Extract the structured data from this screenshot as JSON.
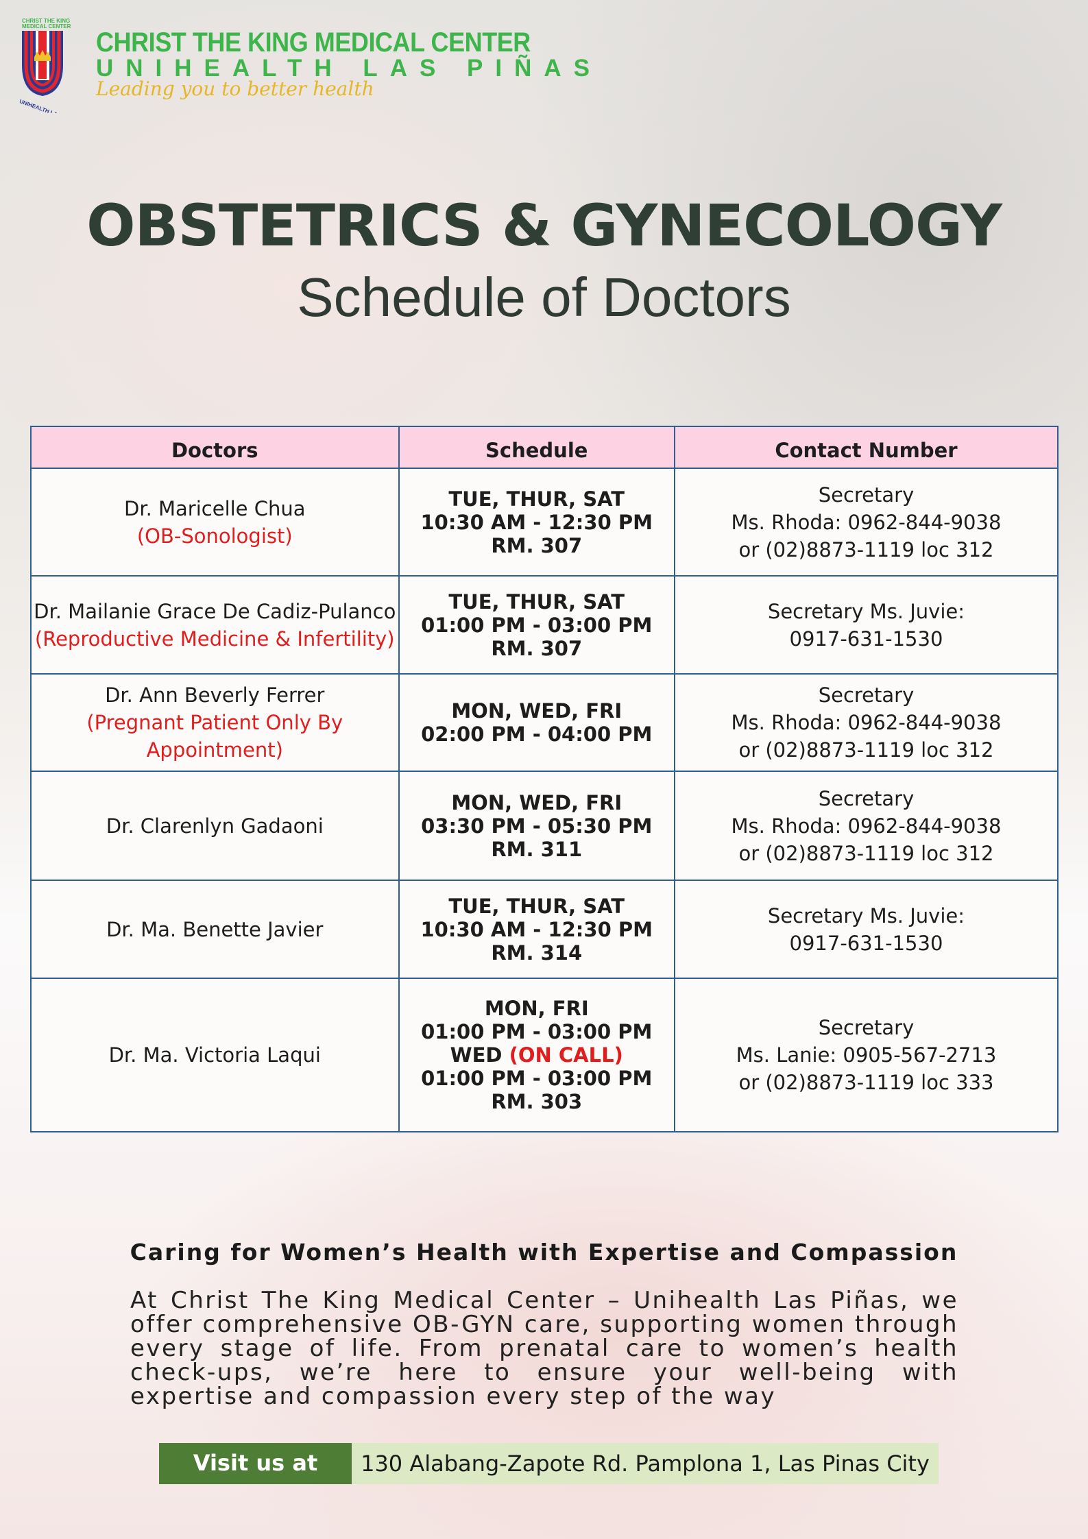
{
  "brand": {
    "logo_top_text": "CHRIST THE KING MEDICAL CENTER",
    "logo_bottom_text": "UNIHEALTH LAS PIÑAS",
    "name": "CHRIST THE KING MEDICAL CENTER",
    "sub": "UNIHEALTH LAS PIÑAS",
    "tagline": "Leading you to better health"
  },
  "title": "OBSTETRICS & GYNECOLOGY",
  "subtitle": "Schedule of Doctors",
  "table": {
    "headers": [
      "Doctors",
      "Schedule",
      "Contact Number"
    ],
    "rows": [
      {
        "doctor": "Dr. Maricelle Chua",
        "note": "(OB-Sonologist)",
        "schedule": [
          "TUE, THUR, SAT",
          "10:30 AM - 12:30 PM",
          "RM. 307"
        ],
        "contact": [
          "Secretary",
          "Ms. Rhoda: 0962-844-9038",
          "or (02)8873-1119 loc 312"
        ]
      },
      {
        "doctor": "Dr. Mailanie Grace De Cadiz-Pulanco",
        "note": "(Reproductive Medicine & Infertility)",
        "schedule": [
          "TUE, THUR, SAT",
          "01:00 PM - 03:00 PM",
          "RM. 307"
        ],
        "contact": [
          "Secretary Ms. Juvie:",
          "0917-631-1530"
        ]
      },
      {
        "doctor": "Dr. Ann Beverly Ferrer",
        "note": "(Pregnant Patient Only By Appointment)",
        "schedule": [
          "MON, WED, FRI",
          "02:00 PM - 04:00 PM"
        ],
        "contact": [
          "Secretary",
          "Ms. Rhoda: 0962-844-9038",
          "or (02)8873-1119 loc 312"
        ]
      },
      {
        "doctor": "Dr. Clarenlyn Gadaoni",
        "schedule": [
          "MON, WED, FRI",
          "03:30 PM - 05:30 PM",
          "RM. 311"
        ],
        "contact": [
          "Secretary",
          "Ms. Rhoda: 0962-844-9038",
          "or (02)8873-1119 loc 312"
        ]
      },
      {
        "doctor": "Dr. Ma. Benette Javier",
        "schedule": [
          "TUE, THUR, SAT",
          "10:30 AM - 12:30 PM",
          "RM. 314"
        ],
        "contact": [
          "Secretary Ms. Juvie:",
          "0917-631-1530"
        ]
      },
      {
        "doctor": "Dr. Ma. Victoria Laqui",
        "schedule": [
          "MON, FRI",
          "01:00 PM - 03:00 PM",
          "WED",
          "(ON CALL)",
          "01:00 PM - 03:00 PM",
          "RM. 303"
        ],
        "contact": [
          "Secretary",
          "Ms. Lanie: 0905-567-2713",
          "or (02)8873-1119 loc 333"
        ]
      }
    ]
  },
  "footer": {
    "tagline": "Caring for Women’s Health with Expertise and Compassion",
    "paragraph": "At Christ The King Medical Center – Unihealth Las Piñas, we offer comprehensive OB-GYN care, supporting women through every stage of life. From prenatal care to women’s health check-ups, we’re here to ensure your well-being with expertise and compassion every step of the way",
    "visit_label": "Visit us at",
    "address": "130 Alabang-Zapote Rd. Pamplona 1, Las Pinas City"
  },
  "colors": {
    "brand_green": "#3db54a",
    "tagline_gold": "#e5b62a",
    "header_pink": "#fdd3e4",
    "border_blue": "#2e5f8f",
    "note_red": "#e01e1e",
    "visit_green": "#4e7d35",
    "address_bg": "#dbe9c4"
  }
}
